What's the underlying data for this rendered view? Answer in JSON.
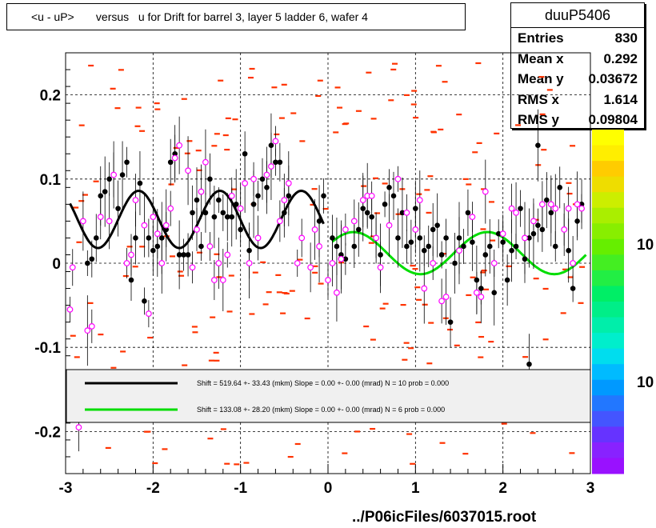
{
  "title": "<u - uP>       versus   u for Drift for barrel 3, layer 5 ladder 6, wafer 4",
  "stats": {
    "name": "duuP5406",
    "rows": [
      {
        "label": "Entries",
        "value": "830"
      },
      {
        "label": "Mean x",
        "value": "0.292"
      },
      {
        "label": "Mean y",
        "value": "0.03672"
      },
      {
        "label": "RMS x",
        "value": "1.614"
      },
      {
        "label": "RMS y",
        "value": "0.09804"
      }
    ]
  },
  "footer": "../P06icFiles/6037015.root",
  "colors": {
    "hist_cells": "#ff3300",
    "profile_black": "#000000",
    "profile_magenta": "#ff00ff",
    "fit_black": "#000000",
    "fit_green": "#00dd00"
  },
  "chart_data": {
    "type": "scatter",
    "xlim": [
      -3,
      3
    ],
    "ylim": [
      -0.25,
      0.25
    ],
    "x_ticks": [
      "-3",
      "-2",
      "-1",
      "0",
      "1",
      "2",
      "3"
    ],
    "y_ticks": [
      "-0.2",
      "-0.1",
      "0",
      "0.1",
      "0.2"
    ],
    "palette_labels": [
      "10",
      "10"
    ],
    "grid": true,
    "legend": [
      {
        "text": "Shift =   519.64 +- 33.43 (mkm) Slope =     0.00 +- 0.00 (mrad)  N = 10 prob = 0.000",
        "color": "#000000"
      },
      {
        "text": "Shift =   133.08 +- 28.20 (mkm) Slope =     0.00 +- 0.00 (mrad)  N = 6 prob = 0.000",
        "color": "#00dd00"
      }
    ],
    "series": [
      {
        "marker": "filled-circle",
        "color": "#000000",
        "points": [
          [
            -2.75,
            0.0
          ],
          [
            -2.7,
            0.005
          ],
          [
            -2.65,
            0.03
          ],
          [
            -2.6,
            0.08
          ],
          [
            -2.55,
            0.085
          ],
          [
            -2.5,
            0.1
          ],
          [
            -2.45,
            0.105
          ],
          [
            -2.4,
            0.065
          ],
          [
            -2.35,
            0.105
          ],
          [
            -2.3,
            0.12
          ],
          [
            -2.25,
            -0.02
          ],
          [
            -2.2,
            0.03
          ],
          [
            -2.15,
            0.095
          ],
          [
            -2.1,
            -0.045
          ],
          [
            -2.05,
            0.03
          ],
          [
            -2.0,
            0.015
          ],
          [
            -1.95,
            0.02
          ],
          [
            -1.9,
            0.03
          ],
          [
            -1.85,
            0.04
          ],
          [
            -1.8,
            0.12
          ],
          [
            -1.75,
            0.13
          ],
          [
            -1.7,
            0.01
          ],
          [
            -1.65,
            0.01
          ],
          [
            -1.6,
            0.01
          ],
          [
            -1.55,
            0.06
          ],
          [
            -1.5,
            0.075
          ],
          [
            -1.45,
            0.02
          ],
          [
            -1.4,
            0.06
          ],
          [
            -1.35,
            0.1
          ],
          [
            -1.3,
            0.055
          ],
          [
            -1.25,
            0.075
          ],
          [
            -1.2,
            0.06
          ],
          [
            -1.15,
            0.055
          ],
          [
            -1.1,
            0.055
          ],
          [
            -1.05,
            0.07
          ],
          [
            -1.0,
            0.04
          ],
          [
            -0.95,
            0.13
          ],
          [
            -0.9,
            0.015
          ],
          [
            -0.85,
            0.07
          ],
          [
            -0.8,
            0.08
          ],
          [
            -0.75,
            0.1
          ],
          [
            -0.7,
            0.09
          ],
          [
            -0.65,
            0.14
          ],
          [
            -0.6,
            0.12
          ],
          [
            -0.55,
            0.12
          ],
          [
            -0.5,
            0.06
          ],
          [
            -0.45,
            0.08
          ],
          [
            -0.1,
            0.05
          ],
          [
            -0.05,
            0.08
          ],
          [
            0.05,
            0.03
          ],
          [
            0.1,
            0.02
          ],
          [
            0.15,
            0.01
          ],
          [
            0.2,
            0.005
          ],
          [
            0.3,
            0.02
          ],
          [
            0.35,
            0.04
          ],
          [
            0.4,
            0.065
          ],
          [
            0.45,
            0.06
          ],
          [
            0.5,
            0.055
          ],
          [
            0.55,
            0.03
          ],
          [
            0.6,
            0.01
          ],
          [
            0.65,
            0.07
          ],
          [
            0.7,
            0.09
          ],
          [
            0.75,
            0.08
          ],
          [
            0.8,
            0.03
          ],
          [
            0.85,
            0.06
          ],
          [
            0.9,
            0.02
          ],
          [
            0.95,
            0.025
          ],
          [
            1.0,
            0.065
          ],
          [
            1.05,
            0.03
          ],
          [
            1.1,
            0.015
          ],
          [
            1.15,
            0.02
          ],
          [
            1.2,
            0.04
          ],
          [
            1.25,
            0.045
          ],
          [
            1.3,
            0.01
          ],
          [
            1.35,
            0.03
          ],
          [
            1.4,
            -0.07
          ],
          [
            1.45,
            0.0
          ],
          [
            1.5,
            0.03
          ],
          [
            1.55,
            0.02
          ],
          [
            1.6,
            0.06
          ],
          [
            1.65,
            0.025
          ],
          [
            1.7,
            -0.02
          ],
          [
            1.75,
            -0.03
          ],
          [
            1.8,
            0.01
          ],
          [
            1.85,
            0.02
          ],
          [
            1.9,
            -0.035
          ],
          [
            1.95,
            0.035
          ],
          [
            2.0,
            0.025
          ],
          [
            2.05,
            -0.02
          ],
          [
            2.1,
            0.015
          ],
          [
            2.15,
            0.02
          ],
          [
            2.2,
            0.065
          ],
          [
            2.25,
            0.005
          ],
          [
            2.3,
            0.03
          ],
          [
            2.35,
            0.035
          ],
          [
            2.4,
            0.045
          ],
          [
            2.45,
            0.04
          ],
          [
            2.5,
            0.075
          ],
          [
            2.55,
            0.06
          ],
          [
            2.6,
            0.02
          ],
          [
            2.65,
            0.09
          ],
          [
            2.7,
            0.04
          ],
          [
            2.75,
            0.015
          ],
          [
            2.8,
            -0.03
          ],
          [
            2.85,
            0.05
          ],
          [
            2.9,
            0.07
          ],
          [
            2.3,
            -0.12
          ],
          [
            2.4,
            0.14
          ]
        ]
      },
      {
        "marker": "open-circle",
        "color": "#ff00ff",
        "points": [
          [
            -2.95,
            -0.055
          ],
          [
            -2.92,
            -0.005
          ],
          [
            -2.85,
            -0.195
          ],
          [
            -2.8,
            0.05
          ],
          [
            -2.75,
            -0.08
          ],
          [
            -2.7,
            -0.075
          ],
          [
            -2.6,
            0.055
          ],
          [
            -2.5,
            0.05
          ],
          [
            -2.45,
            0.105
          ],
          [
            -2.3,
            0.0
          ],
          [
            -2.25,
            0.01
          ],
          [
            -2.2,
            0.075
          ],
          [
            -2.1,
            0.045
          ],
          [
            -2.05,
            -0.06
          ],
          [
            -2.0,
            0.055
          ],
          [
            -1.95,
            0.035
          ],
          [
            -1.9,
            0.0
          ],
          [
            -1.85,
            0.045
          ],
          [
            -1.8,
            0.065
          ],
          [
            -1.75,
            0.125
          ],
          [
            -1.7,
            0.14
          ],
          [
            -1.6,
            0.11
          ],
          [
            -1.55,
            -0.005
          ],
          [
            -1.5,
            0.04
          ],
          [
            -1.45,
            0.085
          ],
          [
            -1.4,
            0.12
          ],
          [
            -1.35,
            0.02
          ],
          [
            -1.3,
            -0.02
          ],
          [
            -1.25,
            0.0
          ],
          [
            -1.2,
            -0.02
          ],
          [
            -1.15,
            0.01
          ],
          [
            -1.1,
            0.08
          ],
          [
            -1.0,
            0.065
          ],
          [
            -0.95,
            0.095
          ],
          [
            -0.9,
            0.0
          ],
          [
            -0.85,
            0.1
          ],
          [
            -0.8,
            0.03
          ],
          [
            -0.7,
            0.105
          ],
          [
            -0.65,
            0.115
          ],
          [
            -0.6,
            0.145
          ],
          [
            -0.55,
            0.05
          ],
          [
            -0.5,
            0.075
          ],
          [
            -0.45,
            0.095
          ],
          [
            -0.35,
            0.0
          ],
          [
            -0.3,
            0.03
          ],
          [
            -0.2,
            -0.005
          ],
          [
            -0.15,
            0.04
          ],
          [
            -0.1,
            0.02
          ],
          [
            0.0,
            -0.02
          ],
          [
            0.05,
            0.0
          ],
          [
            0.1,
            -0.035
          ],
          [
            0.15,
            0.005
          ],
          [
            0.2,
            0.04
          ],
          [
            0.3,
            0.05
          ],
          [
            0.4,
            0.075
          ],
          [
            0.45,
            0.08
          ],
          [
            0.5,
            0.08
          ],
          [
            0.55,
            0.03
          ],
          [
            0.6,
            -0.005
          ],
          [
            0.7,
            0.045
          ],
          [
            0.8,
            0.1
          ],
          [
            0.9,
            0.06
          ],
          [
            1.0,
            0.04
          ],
          [
            1.05,
            0.075
          ],
          [
            1.1,
            -0.03
          ],
          [
            1.2,
            0.0
          ],
          [
            1.3,
            -0.045
          ],
          [
            1.35,
            -0.04
          ],
          [
            1.5,
            0.015
          ],
          [
            1.65,
            0.055
          ],
          [
            1.7,
            -0.035
          ],
          [
            1.75,
            -0.04
          ],
          [
            1.8,
            0.085
          ],
          [
            1.9,
            0.0
          ],
          [
            2.0,
            0.035
          ],
          [
            2.1,
            0.065
          ],
          [
            2.15,
            0.06
          ],
          [
            2.25,
            0.03
          ],
          [
            2.35,
            0.05
          ],
          [
            2.45,
            0.07
          ],
          [
            2.55,
            0.07
          ],
          [
            2.6,
            0.065
          ],
          [
            2.7,
            0.04
          ],
          [
            2.75,
            0.065
          ],
          [
            2.8,
            0.0
          ],
          [
            2.85,
            0.07
          ],
          [
            2.9,
            0.065
          ]
        ]
      }
    ],
    "fits": [
      {
        "color": "#000000",
        "x_range": [
          -2.95,
          -0.05
        ],
        "offset": 0.052,
        "amplitude": 0.034,
        "period": 0.93,
        "phase": -2.65
      },
      {
        "color": "#00dd00",
        "x_range": [
          0.05,
          2.95
        ],
        "offset": 0.012,
        "amplitude": 0.025,
        "period": 1.53,
        "phase": 0.37
      }
    ]
  }
}
